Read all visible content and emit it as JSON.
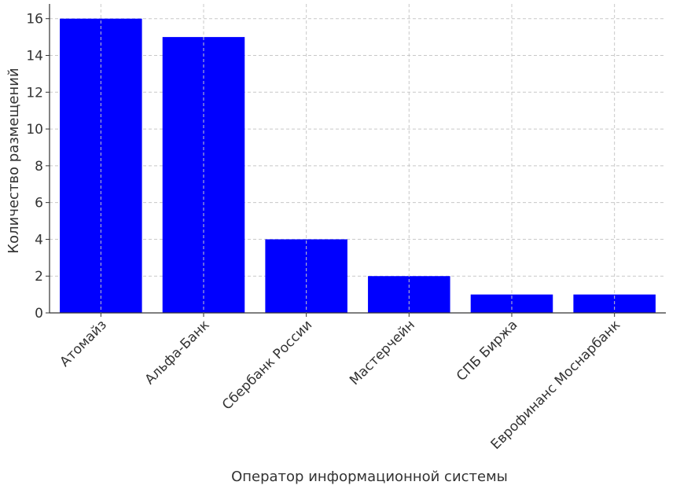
{
  "chart_data": {
    "type": "bar",
    "title": "",
    "xlabel": "Оператор информационной системы",
    "ylabel": "Количество размещений",
    "categories": [
      "Атомайз",
      "Альфа-Банк",
      "Сбербанк России",
      "Мастерчейн",
      "СПБ Биржа",
      "Еврофинанс Моснарбанк"
    ],
    "values": [
      16,
      15,
      4,
      2,
      1,
      1
    ],
    "ylim": [
      0,
      16.8
    ],
    "yticks": [
      0,
      2,
      4,
      6,
      8,
      10,
      12,
      14,
      16
    ],
    "grid": true,
    "bar_color": "#0000ff",
    "grid_color": "#c8c8c8"
  }
}
